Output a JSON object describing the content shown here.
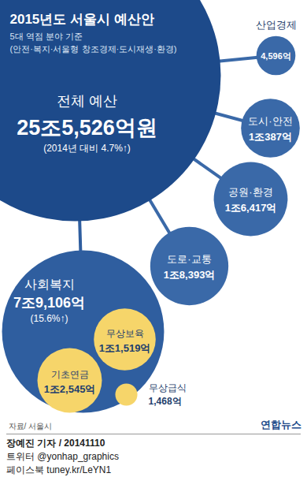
{
  "chart_data": {
    "type": "bubble",
    "title": "2015년도 서울시 예산안",
    "subtitle": [
      "5대 역점 분야 기준",
      "(안전·복지·서울형 창조경제·도시재생·환경)"
    ],
    "total": {
      "label": "전체 예산",
      "value": 255526,
      "value_label": "25조5,526억원",
      "change_label": "(2014년 대비 4.7%↑)",
      "color": "#1d4a8a"
    },
    "categories": [
      "산업경제",
      "도시·안전",
      "공원·환경",
      "도로·교통",
      "사회복지"
    ],
    "values": [
      4596,
      10387,
      16417,
      18393,
      79106
    ],
    "value_labels": [
      "4,596억",
      "1조387억",
      "1조6,417억",
      "1조8,393억",
      "7조9,106억"
    ],
    "change_labels": [
      null,
      null,
      null,
      null,
      "(15.6%↑)"
    ],
    "colors": [
      "#3a69a8",
      "#3a69a8",
      "#3a69a8",
      "#3a69a8",
      "#2f5e9f"
    ],
    "sub": {
      "parent": "사회복지",
      "categories": [
        "무상보육",
        "기초연금",
        "무상급식"
      ],
      "values": [
        11519,
        12545,
        1468
      ],
      "value_labels": [
        "1조1,519억",
        "1조2,545억",
        "1,468억"
      ],
      "color": "#f6d56a"
    },
    "data_labels": true,
    "tick_labels": false,
    "source": "자료/ 서울시",
    "credit": "연합뉴스",
    "footer": [
      "장예진 기자 / 20141110",
      "트위터 @yonhap_graphics",
      "페이스북 tuney.kr/LeYN1"
    ]
  }
}
